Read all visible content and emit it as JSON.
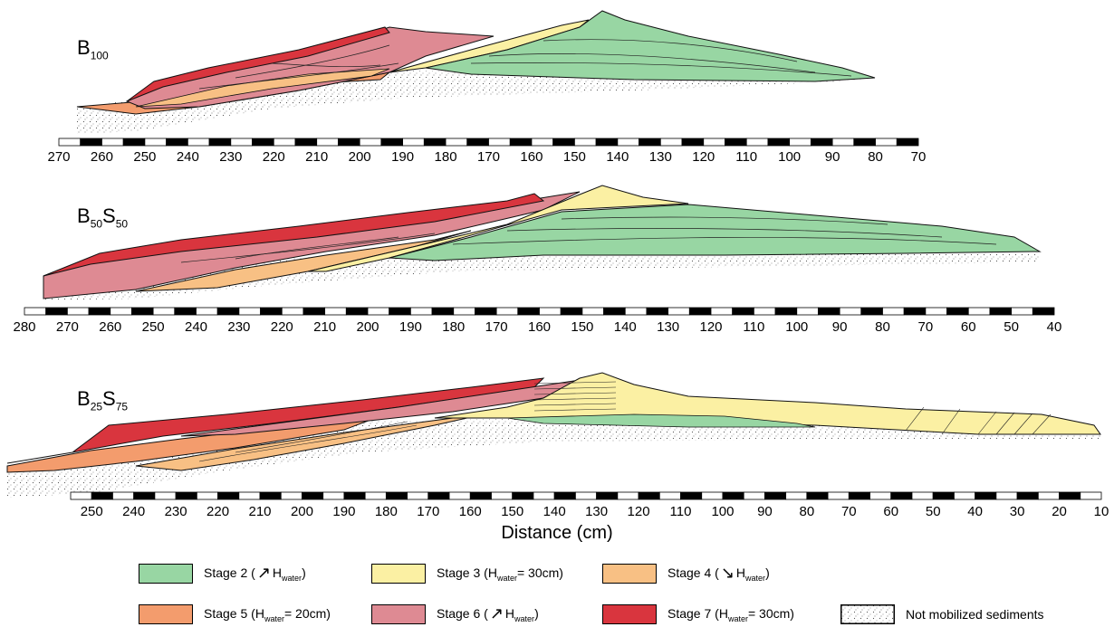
{
  "colors": {
    "stage2": "#98d6a3",
    "stage3": "#fbf0a3",
    "stage4": "#f8c084",
    "stage5": "#f39c6d",
    "stage6": "#de8a93",
    "stage7": "#d9353e",
    "sediment_fill": "#ffffff",
    "sediment_dots": "#555555",
    "outline": "#111111"
  },
  "panels": [
    {
      "label_main": "B",
      "label_parts": [
        {
          "t": "B",
          "s": "100"
        }
      ],
      "axis": {
        "start": 270,
        "end": 70,
        "step": 10,
        "ticks": [
          "270",
          "260",
          "250",
          "240",
          "230",
          "220",
          "210",
          "200",
          "190",
          "180",
          "170",
          "160",
          "150",
          "140",
          "130",
          "120",
          "110",
          "100",
          "90",
          "80",
          "70"
        ]
      }
    },
    {
      "label_parts": [
        {
          "t": "B",
          "s": "50"
        },
        {
          "t": "S",
          "s": "50"
        }
      ],
      "axis": {
        "start": 280,
        "end": 40,
        "step": 10,
        "ticks": [
          "280",
          "270",
          "260",
          "250",
          "240",
          "230",
          "220",
          "210",
          "200",
          "190",
          "180",
          "170",
          "160",
          "150",
          "140",
          "130",
          "120",
          "110",
          "100",
          "90",
          "80",
          "70",
          "60",
          "50",
          "40"
        ]
      }
    },
    {
      "label_parts": [
        {
          "t": "B",
          "s": "25"
        },
        {
          "t": "S",
          "s": "75"
        }
      ],
      "axis": {
        "start": 255,
        "end": 10,
        "step": 10,
        "ticks": [
          "250",
          "240",
          "230",
          "220",
          "210",
          "200",
          "190",
          "180",
          "170",
          "160",
          "150",
          "140",
          "130",
          "120",
          "110",
          "100",
          "90",
          "80",
          "70",
          "60",
          "50",
          "40",
          "30",
          "20",
          "10"
        ]
      }
    }
  ],
  "panel_label_1": {
    "main": "B",
    "sub": "100"
  },
  "panel_label_2": {
    "main1": "B",
    "sub1": "50",
    "main2": "S",
    "sub2": "50"
  },
  "panel_label_3": {
    "main1": "B",
    "sub1": "25",
    "main2": "S",
    "sub2": "75"
  },
  "xaxis_title": "Distance (cm)",
  "legend": {
    "stage2": {
      "prefix": "Stage 2 (",
      "h": "H",
      "sub": "water",
      "suffix": ")",
      "arrow": "↗"
    },
    "stage3": {
      "prefix": "Stage 3 (",
      "h": "H",
      "sub": "water",
      "suffix": "= 30cm)"
    },
    "stage4": {
      "prefix": "Stage 4 (",
      "h": "H",
      "sub": "water",
      "suffix": ")",
      "arrow": "↘"
    },
    "stage5": {
      "prefix": "Stage 5 (",
      "h": "H",
      "sub": "water",
      "suffix": "= 20cm)"
    },
    "stage6": {
      "prefix": "Stage 6 (",
      "h": "H",
      "sub": "water",
      "suffix": ")",
      "arrow": "↗"
    },
    "stage7": {
      "prefix": "Stage 7 (",
      "h": "H",
      "sub": "water",
      "suffix": "= 30cm)"
    },
    "sediments": {
      "label": "Not mobilized sediments"
    }
  }
}
